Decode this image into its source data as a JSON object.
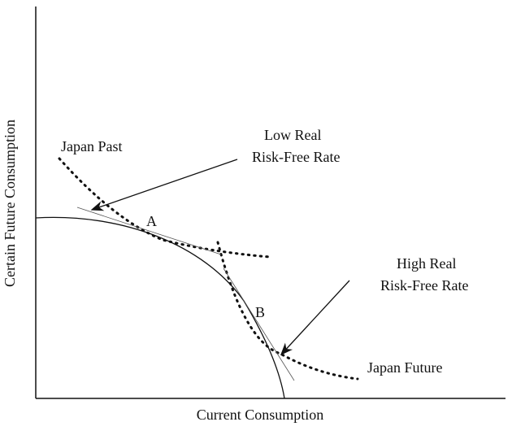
{
  "axes": {
    "y_label": "Certain Future Consumption",
    "x_label": "Current Consumption"
  },
  "curves": {
    "past": {
      "label": "Japan Past"
    },
    "future": {
      "label": "Japan Future"
    }
  },
  "points": {
    "a": "A",
    "b": "B"
  },
  "annotations": {
    "low": {
      "line1": "Low Real",
      "line2": "Risk-Free Rate"
    },
    "high": {
      "line1": "High Real",
      "line2": "Risk-Free Rate"
    }
  }
}
